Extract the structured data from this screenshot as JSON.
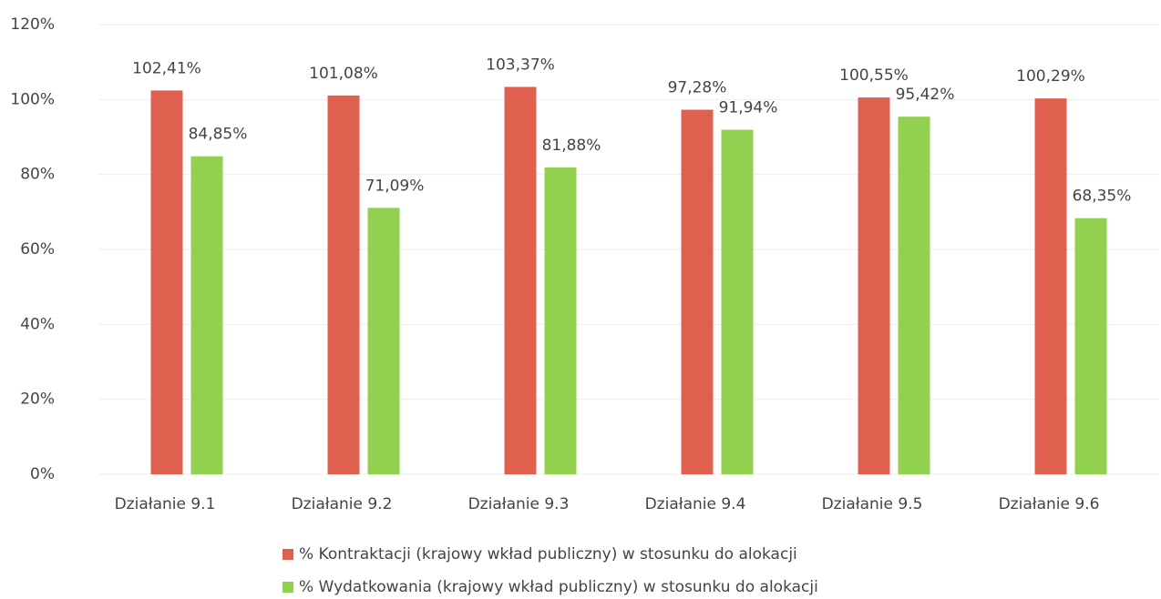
{
  "chart_data": {
    "type": "bar",
    "categories": [
      "Działanie 9.1",
      "Działanie 9.2",
      "Działanie 9.3",
      "Działanie 9.4",
      "Działanie 9.5",
      "Działanie 9.6"
    ],
    "series": [
      {
        "name": "% Kontraktacji (krajowy wkład publiczny) w stosunku do alokacji",
        "color": "#e0604f",
        "values": [
          102.41,
          101.08,
          103.37,
          97.28,
          100.55,
          100.29
        ],
        "value_labels": [
          "102,41%",
          "101,08%",
          "103,37%",
          "97,28%",
          "100,55%",
          "100,29%"
        ]
      },
      {
        "name": "% Wydatkowania (krajowy wkład publiczny) w stosunku do alokacji",
        "color": "#92d050",
        "values": [
          84.85,
          71.09,
          81.88,
          91.94,
          95.42,
          68.35
        ],
        "value_labels": [
          "84,85%",
          "71,09%",
          "81,88%",
          "91,94%",
          "95,42%",
          "68,35%"
        ]
      }
    ],
    "ylim": [
      0,
      120
    ],
    "yticks": [
      {
        "value": 0,
        "label": "0%"
      },
      {
        "value": 20,
        "label": "20%"
      },
      {
        "value": 40,
        "label": "40%"
      },
      {
        "value": 60,
        "label": "60%"
      },
      {
        "value": 80,
        "label": "80%"
      },
      {
        "value": 100,
        "label": "100%"
      },
      {
        "value": 120,
        "label": "120%"
      }
    ],
    "grid": true
  }
}
